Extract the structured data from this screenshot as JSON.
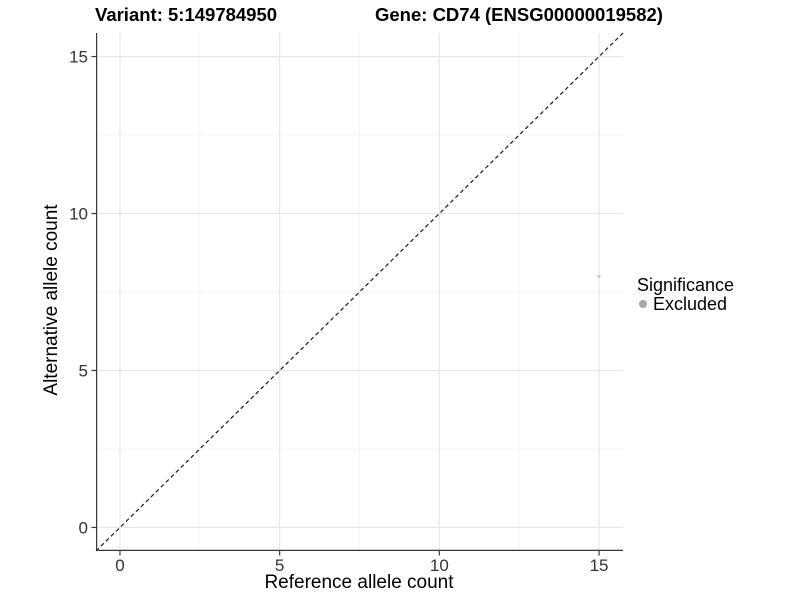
{
  "titles": {
    "variant": "Variant: 5:149784950",
    "gene": "Gene: CD74 (ENSG00000019582)"
  },
  "axes": {
    "x_label": "Reference allele count",
    "y_label": "Alternative allele count"
  },
  "legend": {
    "title": "Significance",
    "items": [
      {
        "label": "Excluded",
        "color": "#a8a8a8"
      }
    ]
  },
  "colors": {
    "background": "#ffffff",
    "grid_major": "#e6e6e6",
    "grid_minor": "#f1f1f1",
    "axis_line": "#383838",
    "tick_label": "#333333",
    "identity_line": "#1a1a1a",
    "excluded_point": "#c4c4c4"
  },
  "chart_data": {
    "type": "scatter",
    "title": "Variant: 5:149784950    Gene: CD74 (ENSG00000019582)",
    "xlabel": "Reference allele count",
    "ylabel": "Alternative allele count",
    "xlim": [
      -0.75,
      15.75
    ],
    "ylim": [
      -0.75,
      15.75
    ],
    "x_ticks": [
      0,
      5,
      10,
      15
    ],
    "y_ticks": [
      0,
      5,
      10,
      15
    ],
    "x_minor_ticks": [
      2.5,
      7.5,
      12.5
    ],
    "y_minor_ticks": [
      2.5,
      7.5,
      12.5
    ],
    "grid": "major+minor",
    "legend_position": "right",
    "legend_title": "Significance",
    "series": [
      {
        "name": "Excluded",
        "type": "scatter",
        "color": "#c4c4c4",
        "point_radius": 1.6,
        "points": [
          {
            "x": 15,
            "y": 8
          }
        ]
      }
    ],
    "reference_line": {
      "type": "identity",
      "equation": "y = x",
      "style": "dashed",
      "color": "#1a1a1a",
      "from": [
        -0.75,
        -0.75
      ],
      "to": [
        15.75,
        15.75
      ]
    }
  }
}
